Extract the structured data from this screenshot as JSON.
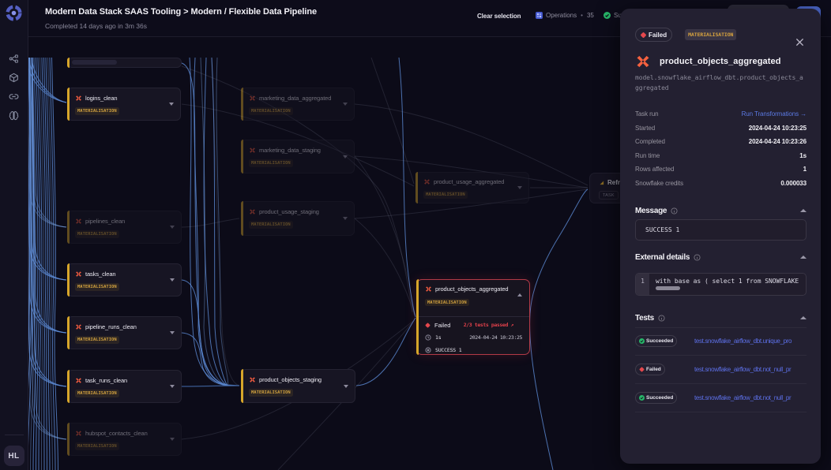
{
  "colors": {
    "accent_yellow": "#d7a62a",
    "dbt_orange": "#f25c40",
    "edge_blue": "#5d8bd6",
    "failed_red": "#e5484d",
    "succeeded_green": "#27b568",
    "link_blue": "#5b79e3",
    "panel_bg": "#232031",
    "canvas_bg": "#0c0b18"
  },
  "sidebar": {
    "logo": "orchestra-logo",
    "icons": [
      "pipeline-graph",
      "integrations-cube",
      "connections-link",
      "ai-brain"
    ],
    "avatar": "HL"
  },
  "header": {
    "title": "Modern Data Stack SAAS Tooling > Modern / Flexible Data Pipeline",
    "subtitle": "Completed 14 days ago in 3m 36s",
    "clear_selection": "Clear selection",
    "operations_label": "Operations",
    "operations_count": "35",
    "succeeded_clipped": "Su"
  },
  "canvas": {
    "badge_label": "MATERIALISATION",
    "nodes": [
      {
        "label": "logins_clean",
        "state": "bright"
      },
      {
        "label": "marketing_data_aggregated",
        "state": "dim"
      },
      {
        "label": "marketing_data_staging",
        "state": "dim"
      },
      {
        "label": "product_usage_aggregated",
        "state": "dim"
      },
      {
        "label": "product_usage_staging",
        "state": "dim"
      },
      {
        "label": "pipelines_clean",
        "state": "dim"
      },
      {
        "label": "tasks_clean",
        "state": "bright"
      },
      {
        "label": "pipeline_runs_clean",
        "state": "bright"
      },
      {
        "label": "task_runs_clean",
        "state": "bright"
      },
      {
        "label": "product_objects_staging",
        "state": "bright"
      },
      {
        "label": "hubspot_contacts_clean",
        "state": "dim"
      }
    ],
    "selected": {
      "label": "product_objects_aggregated",
      "badge": "MATERIALISATION",
      "status": "Failed",
      "tests_summary": "2/3 tests passed ↗",
      "runtime": "1s",
      "timestamp": "2024-04-24 10:23:25",
      "message": "SUCCESS 1"
    },
    "task_node": {
      "label": "Refre",
      "badge": "TASK"
    }
  },
  "panel": {
    "status_badge": "Failed",
    "type_badge": "MATERIALISATION",
    "title": "product_objects_aggregated",
    "path": "model.snowflake_airflow_dbt.product_objects_aggregated",
    "details": [
      {
        "label": "Task run",
        "value": "Run Transformations →"
      },
      {
        "label": "Started",
        "value": "2024-04-24 10:23:25"
      },
      {
        "label": "Completed",
        "value": "2024-04-24 10:23:26"
      },
      {
        "label": "Run time",
        "value": "1s"
      },
      {
        "label": "Rows affected",
        "value": "1"
      },
      {
        "label": "Snowflake credits",
        "value": "0.000033"
      }
    ],
    "message": {
      "heading": "Message",
      "body": "SUCCESS 1"
    },
    "external": {
      "heading": "External details",
      "line_no": "1",
      "code": "with base as ( select 1 from SNOWFLAKE"
    },
    "tests": {
      "heading": "Tests",
      "items": [
        {
          "status": "Succeeded",
          "name": "test.snowflake_airflow_dbt.unique_pro"
        },
        {
          "status": "Failed",
          "name": "test.snowflake_airflow_dbt.not_null_pr"
        },
        {
          "status": "Succeeded",
          "name": "test.snowflake_airflow_dbt.not_null_pr"
        }
      ]
    }
  }
}
